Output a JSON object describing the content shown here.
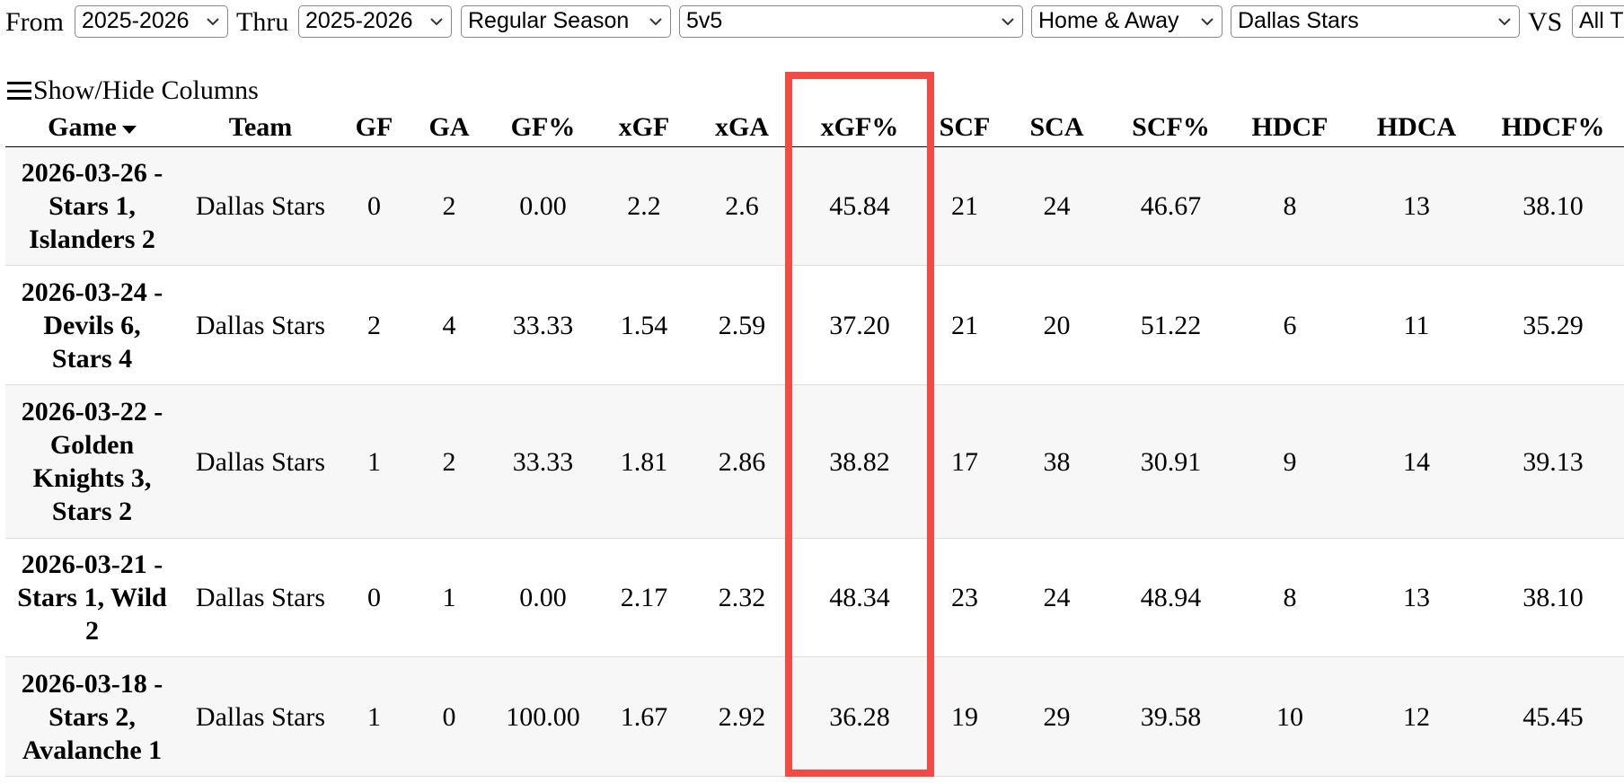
{
  "filters": {
    "from_label": "From",
    "from": "2025-2026",
    "thru_label": "Thru",
    "thru": "2025-2026",
    "season_type": "Regular Season",
    "strength": "5v5",
    "venue": "Home & Away",
    "team": "Dallas Stars",
    "vs_label": "VS",
    "opponent": "All T"
  },
  "toggle": "Show/Hide Columns",
  "table": {
    "columns": [
      "Game",
      "Team",
      "GF",
      "GA",
      "GF%",
      "xGF",
      "xGA",
      "xGF%",
      "SCF",
      "SCA",
      "SCF%",
      "HDCF",
      "HDCA",
      "HDCF%"
    ],
    "rows": [
      [
        "2026-03-26 - Stars 1, Islanders 2",
        "Dallas Stars",
        "0",
        "2",
        "0.00",
        "2.2",
        "2.6",
        "45.84",
        "21",
        "24",
        "46.67",
        "8",
        "13",
        "38.10"
      ],
      [
        "2026-03-24 - Devils 6, Stars 4",
        "Dallas Stars",
        "2",
        "4",
        "33.33",
        "1.54",
        "2.59",
        "37.20",
        "21",
        "20",
        "51.22",
        "6",
        "11",
        "35.29"
      ],
      [
        "2026-03-22 - Golden Knights 3, Stars 2",
        "Dallas Stars",
        "1",
        "2",
        "33.33",
        "1.81",
        "2.86",
        "38.82",
        "17",
        "38",
        "30.91",
        "9",
        "14",
        "39.13"
      ],
      [
        "2026-03-21 - Stars 1, Wild 2",
        "Dallas Stars",
        "0",
        "1",
        "0.00",
        "2.17",
        "2.32",
        "48.34",
        "23",
        "24",
        "48.94",
        "8",
        "13",
        "38.10"
      ],
      [
        "2026-03-18 - Stars 2, Avalanche 1",
        "Dallas Stars",
        "1",
        "0",
        "100.00",
        "1.67",
        "2.92",
        "36.28",
        "19",
        "29",
        "39.58",
        "10",
        "12",
        "45.45"
      ]
    ]
  }
}
